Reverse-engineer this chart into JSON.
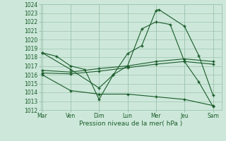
{
  "xlabel": "Pression niveau de la mer( hPa )",
  "background_color": "#cde8da",
  "grid_color": "#9ec4b0",
  "line_color": "#1a5c2a",
  "ylim": [
    1012,
    1024
  ],
  "yticks": [
    1012,
    1013,
    1014,
    1015,
    1016,
    1017,
    1018,
    1019,
    1020,
    1021,
    1022,
    1023,
    1024
  ],
  "x_labels": [
    "Mar",
    "Ven",
    "Dim",
    "Lun",
    "Mer",
    "Jeu",
    "Sam"
  ],
  "x_positions": [
    0,
    1,
    2,
    3,
    4,
    5,
    6
  ],
  "xlim": [
    -0.05,
    6.3
  ],
  "series": [
    {
      "x": [
        0,
        0.5,
        1,
        1.5,
        2,
        2.5,
        3,
        3.5,
        4,
        4.1,
        5,
        5.5,
        6
      ],
      "y": [
        1018.5,
        1018.1,
        1017.0,
        1016.6,
        1013.2,
        1016.0,
        1018.4,
        1019.3,
        1023.3,
        1023.4,
        1021.5,
        1018.2,
        1013.7
      ]
    },
    {
      "x": [
        0,
        1,
        2,
        2.5,
        3,
        3.5,
        4,
        4.5,
        5,
        5.5,
        6
      ],
      "y": [
        1018.5,
        1016.6,
        1014.5,
        1016.0,
        1017.0,
        1021.2,
        1022.0,
        1021.7,
        1017.5,
        1015.2,
        1012.4
      ]
    },
    {
      "x": [
        0,
        1,
        2,
        3,
        4,
        5,
        6
      ],
      "y": [
        1016.5,
        1016.3,
        1016.7,
        1017.0,
        1017.5,
        1017.8,
        1017.5
      ]
    },
    {
      "x": [
        0,
        1,
        2,
        3,
        4,
        5,
        6
      ],
      "y": [
        1016.2,
        1016.1,
        1016.4,
        1016.8,
        1017.2,
        1017.5,
        1017.2
      ]
    },
    {
      "x": [
        0,
        1,
        2,
        3,
        4,
        5,
        6
      ],
      "y": [
        1016.0,
        1014.2,
        1013.8,
        1013.8,
        1013.5,
        1013.2,
        1012.5
      ]
    }
  ]
}
